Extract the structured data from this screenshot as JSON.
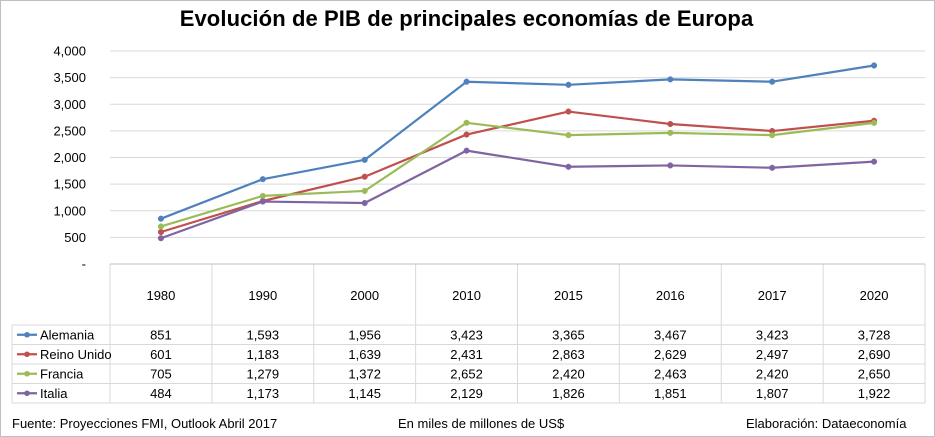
{
  "chart_data": {
    "type": "line",
    "title": "Evolución de PIB de principales economías de Europa",
    "categories": [
      "1980",
      "1990",
      "2000",
      "2010",
      "2015",
      "2016",
      "2017",
      "2020"
    ],
    "y_ticks": [
      "-",
      "500",
      "1,000",
      "1,500",
      "2,000",
      "2,500",
      "3,000",
      "3,500",
      "4,000"
    ],
    "ylim": [
      0,
      4000
    ],
    "grid": true,
    "legend": "data-table-left",
    "series": [
      {
        "name": "Alemania",
        "color": "#4f81bd",
        "values": [
          851,
          1593,
          1956,
          3423,
          3365,
          3467,
          3423,
          3728
        ],
        "labels": [
          "851",
          "1,593",
          "1,956",
          "3,423",
          "3,365",
          "3,467",
          "3,423",
          "3,728"
        ]
      },
      {
        "name": "Reino Unido",
        "color": "#c0504d",
        "values": [
          601,
          1183,
          1639,
          2431,
          2863,
          2629,
          2497,
          2690
        ],
        "labels": [
          "601",
          "1,183",
          "1,639",
          "2,431",
          "2,863",
          "2,629",
          "2,497",
          "2,690"
        ]
      },
      {
        "name": "Francia",
        "color": "#9bbb59",
        "values": [
          705,
          1279,
          1372,
          2652,
          2420,
          2463,
          2420,
          2650
        ],
        "labels": [
          "705",
          "1,279",
          "1,372",
          "2,652",
          "2,420",
          "2,463",
          "2,420",
          "2,650"
        ]
      },
      {
        "name": "Italia",
        "color": "#8064a2",
        "values": [
          484,
          1173,
          1145,
          2129,
          1826,
          1851,
          1807,
          1922
        ],
        "labels": [
          "484",
          "1,173",
          "1,145",
          "2,129",
          "1,826",
          "1,851",
          "1,807",
          "1,922"
        ]
      }
    ]
  },
  "footer": {
    "source": "Fuente: Proyecciones FMI, Outlook Abril 2017",
    "units": "En miles de millones de US$",
    "credit": "Elaboración: Dataeconomía"
  }
}
